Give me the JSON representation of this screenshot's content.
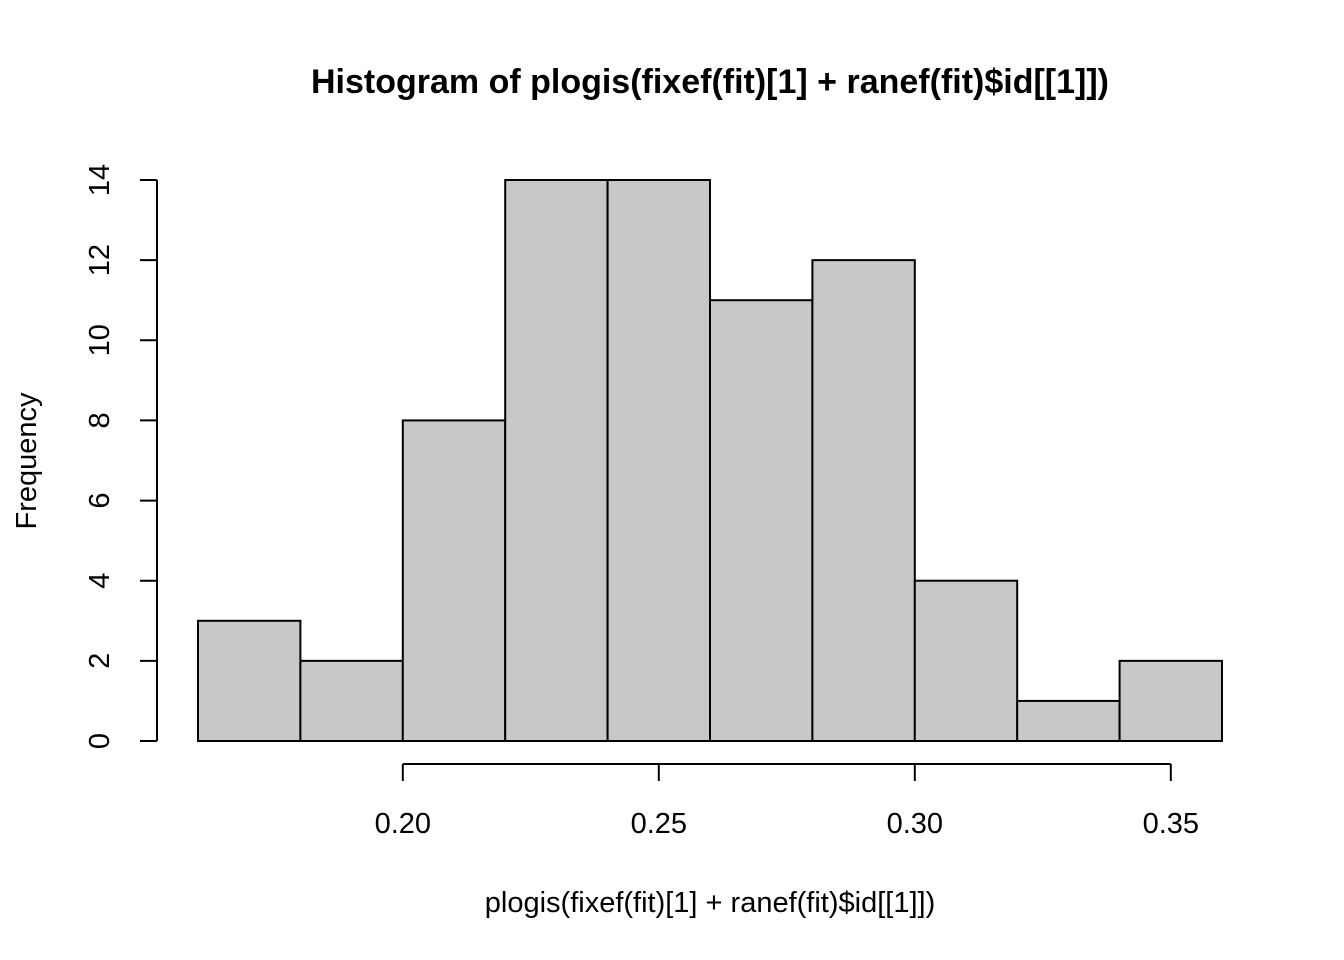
{
  "chart_data": {
    "type": "bar",
    "title": "Histogram of plogis(fixef(fit)[1] + ranef(fit)$id[[1]])",
    "xlabel": "plogis(fixef(fit)[1] + ranef(fit)$id[[1]])",
    "ylabel": "Frequency",
    "bins": [
      {
        "start": 0.16,
        "end": 0.18,
        "count": 3
      },
      {
        "start": 0.18,
        "end": 0.2,
        "count": 2
      },
      {
        "start": 0.2,
        "end": 0.22,
        "count": 8
      },
      {
        "start": 0.22,
        "end": 0.24,
        "count": 14
      },
      {
        "start": 0.24,
        "end": 0.26,
        "count": 14
      },
      {
        "start": 0.26,
        "end": 0.28,
        "count": 11
      },
      {
        "start": 0.28,
        "end": 0.3,
        "count": 12
      },
      {
        "start": 0.3,
        "end": 0.32,
        "count": 4
      },
      {
        "start": 0.32,
        "end": 0.34,
        "count": 1
      },
      {
        "start": 0.34,
        "end": 0.36,
        "count": 2
      }
    ],
    "x_ticks": [
      {
        "value": 0.2,
        "label": "0.20"
      },
      {
        "value": 0.25,
        "label": "0.25"
      },
      {
        "value": 0.3,
        "label": "0.30"
      },
      {
        "value": 0.35,
        "label": "0.35"
      }
    ],
    "y_ticks": [
      {
        "value": 0,
        "label": "0"
      },
      {
        "value": 2,
        "label": "2"
      },
      {
        "value": 4,
        "label": "4"
      },
      {
        "value": 6,
        "label": "6"
      },
      {
        "value": 8,
        "label": "8"
      },
      {
        "value": 10,
        "label": "10"
      },
      {
        "value": 12,
        "label": "12"
      },
      {
        "value": 14,
        "label": "14"
      }
    ],
    "xlim": [
      0.16,
      0.36
    ],
    "ylim": [
      0,
      14
    ],
    "grid": false,
    "bar_color": "#c8c8c8",
    "edge_color": "#000000"
  }
}
